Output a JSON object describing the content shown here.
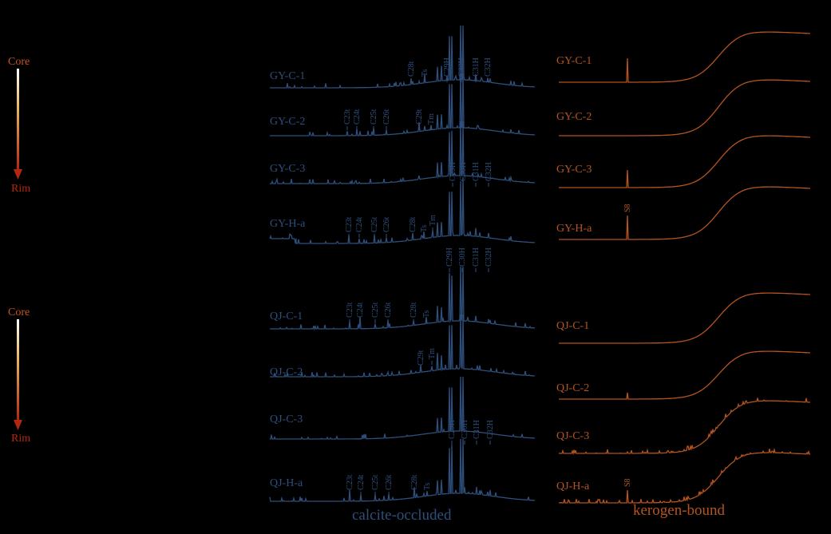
{
  "gradient_bars": [
    {
      "top": "Core",
      "bottom": "Rim"
    },
    {
      "top": "Core",
      "bottom": "Rim"
    }
  ],
  "calcite_occluded": {
    "label": "calcite-occluded",
    "samples": [
      {
        "name": "GY-C-1",
        "peaks": [
          "C28t",
          "Ts",
          "C29H",
          "C30H",
          "C31H",
          "C32H"
        ]
      },
      {
        "name": "GY-C-2",
        "peaks": [
          "C23t",
          "C24t",
          "C25t",
          "C26t",
          "C29t",
          "Tm"
        ]
      },
      {
        "name": "GY-C-3"
      },
      {
        "name": "GY-H-a",
        "peaks": [
          "C23t",
          "C24t",
          "C25t",
          "C26t",
          "C28t",
          "Ts",
          "Tm",
          "C29H",
          "C30H",
          "C31H",
          "C32H"
        ]
      },
      {
        "name": "QJ-C-1",
        "peaks": [
          "C23t",
          "C24t",
          "C25t",
          "C26t",
          "C28t",
          "Ts",
          "C29H",
          "C30H",
          "C31H",
          "C32H"
        ]
      },
      {
        "name": "QJ-C-2",
        "peaks": [
          "C29t",
          "Tm"
        ]
      },
      {
        "name": "QJ-C-3"
      },
      {
        "name": "QJ-H-a",
        "peaks": [
          "C23t",
          "C24t",
          "C25t",
          "C26t",
          "C28t",
          "Ts",
          "C29H",
          "C30H",
          "C31H",
          "C32H"
        ]
      }
    ]
  },
  "kerogen_bound": {
    "label": "kerogen-bound",
    "samples": [
      {
        "name": "GY-C-1"
      },
      {
        "name": "GY-C-2"
      },
      {
        "name": "GY-C-3"
      },
      {
        "name": "GY-H-a",
        "peaks": [
          "S8"
        ]
      },
      {
        "name": "QJ-C-1"
      },
      {
        "name": "QJ-C-2"
      },
      {
        "name": "QJ-C-3"
      },
      {
        "name": "QJ-H-a",
        "peaks": [
          "S8"
        ]
      }
    ]
  }
}
